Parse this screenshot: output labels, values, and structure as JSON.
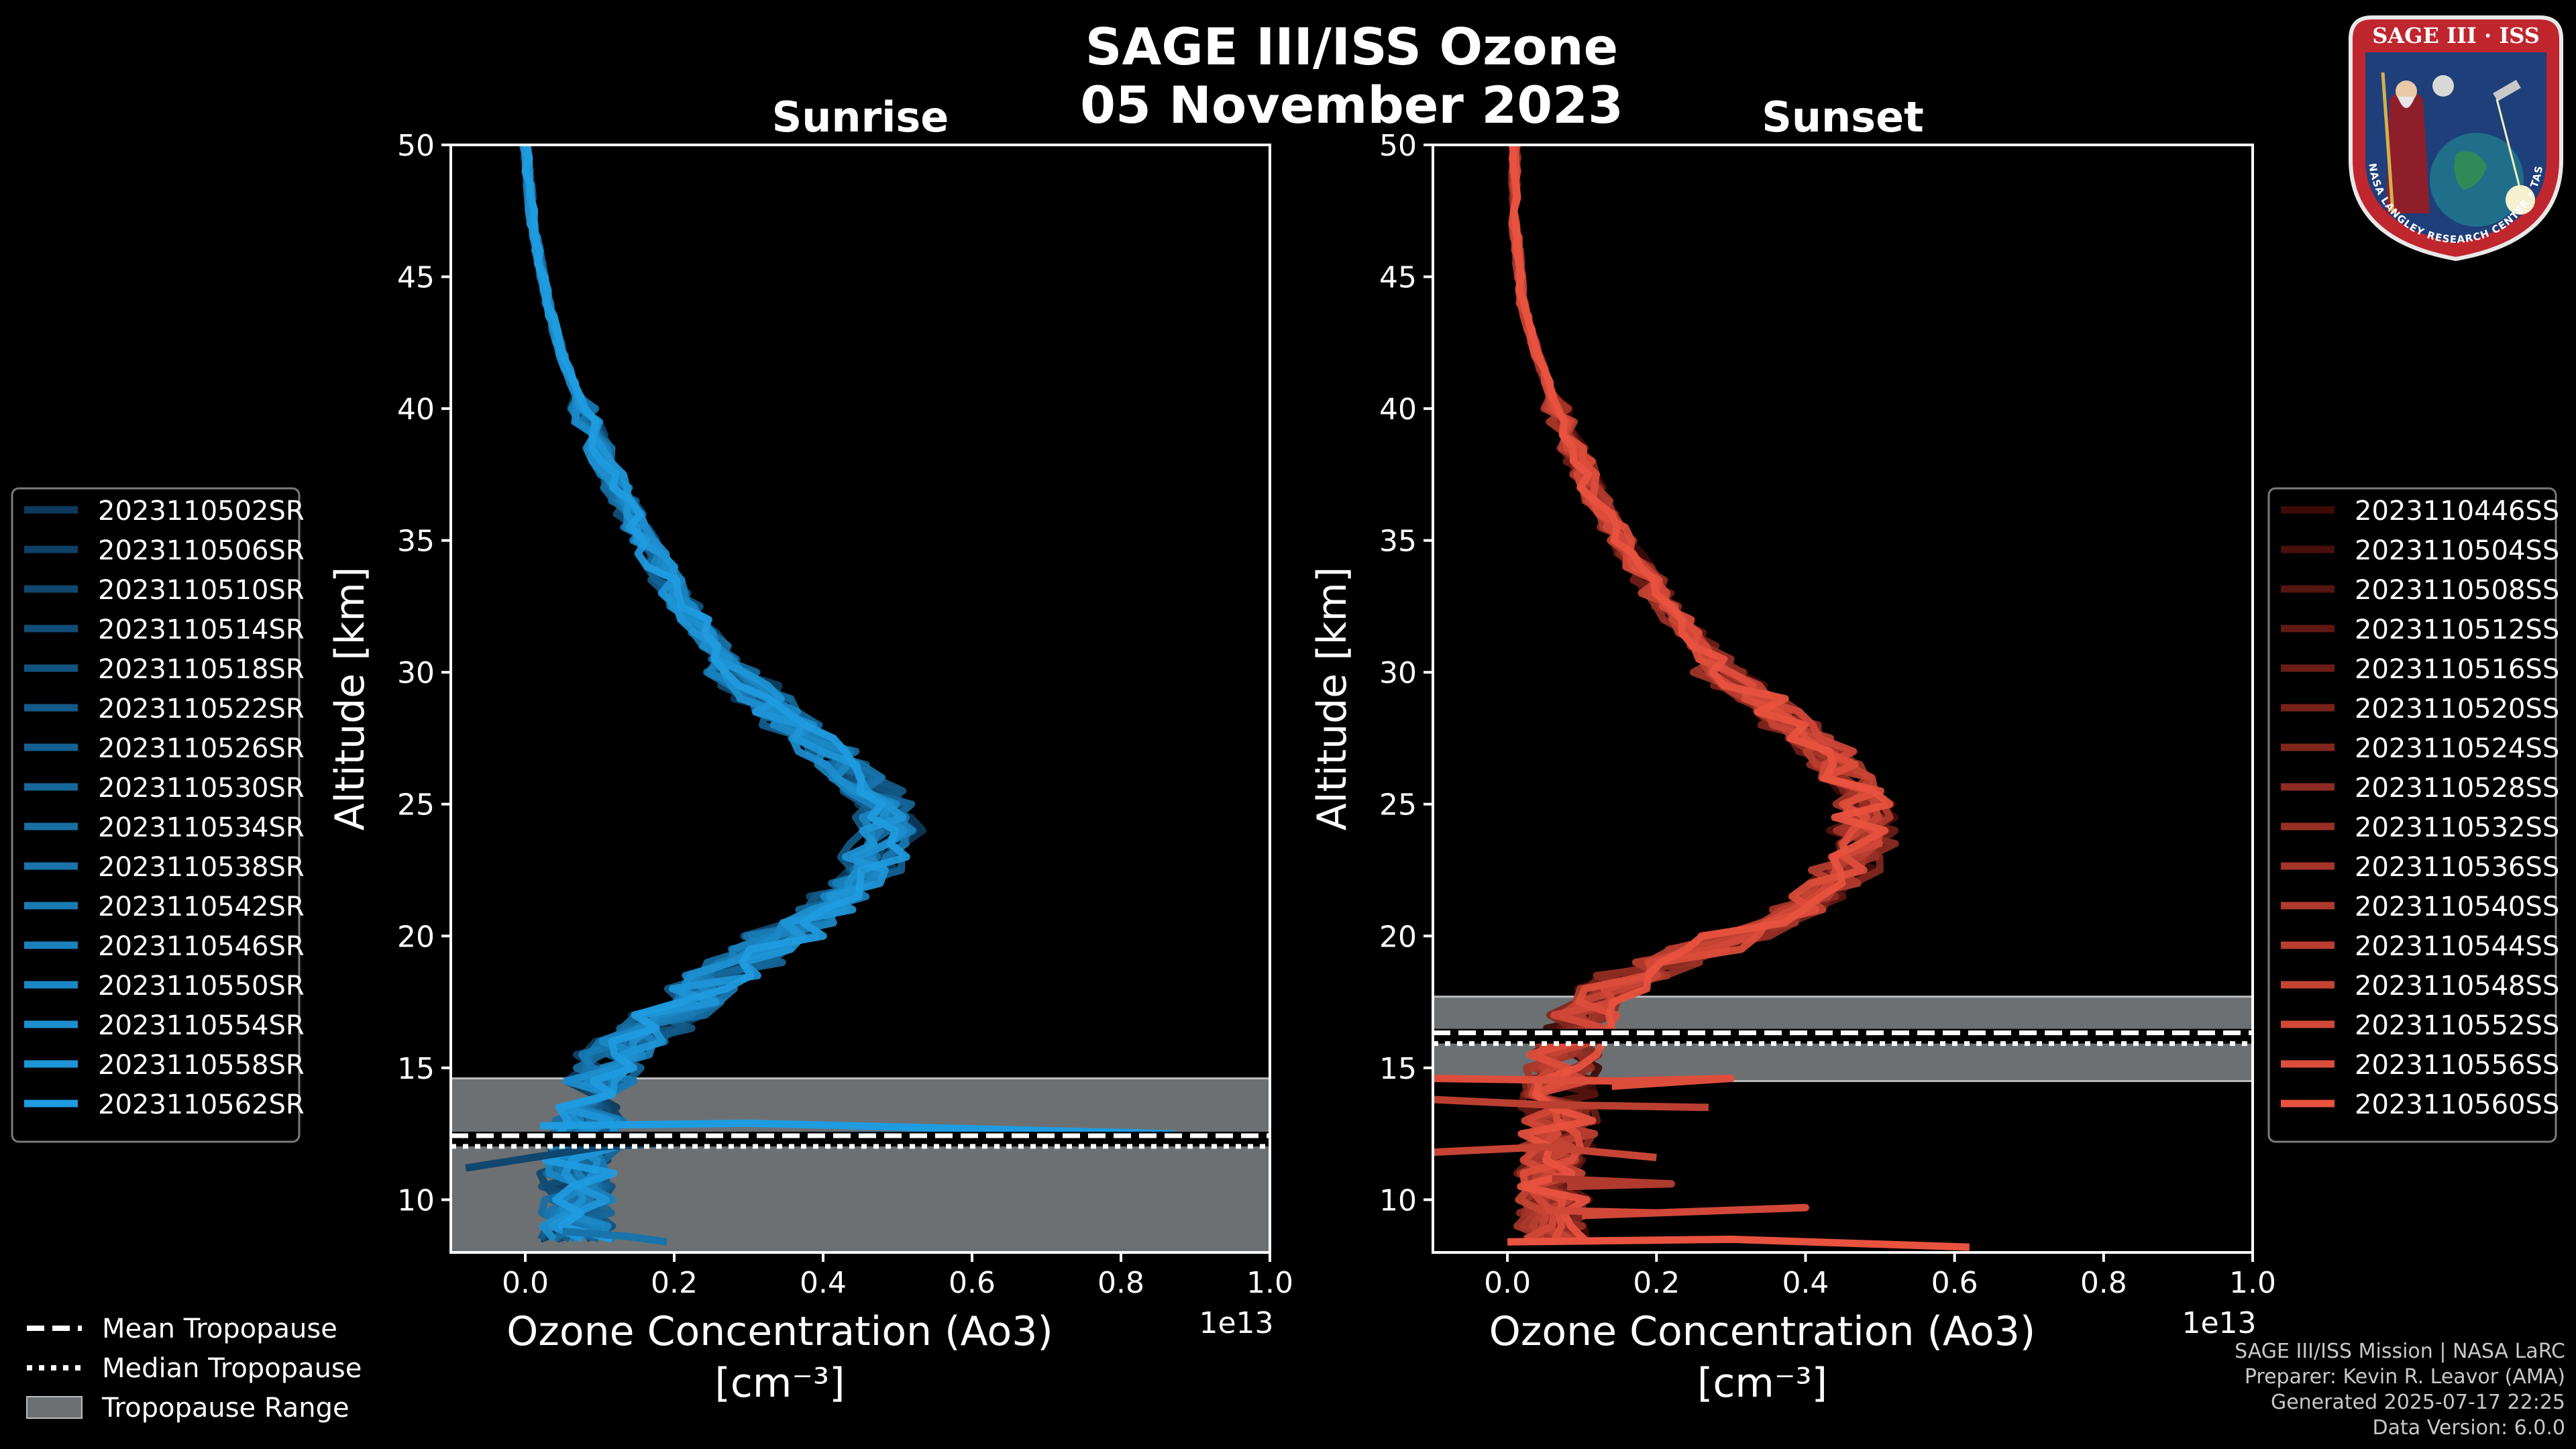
{
  "title": "SAGE III/ISS Ozone",
  "subtitle": "05 November 2023",
  "logo": {
    "line1": "SAGE III · ISS",
    "ring_text": "BALL • NASA LANGLEY RESEARCH CENTER • TAS-I • ESA",
    "colors": {
      "ring": "#c0262e",
      "field": "#1e3f7a",
      "gold": "#d7b04a"
    }
  },
  "credits": [
    "SAGE III/ISS Mission | NASA LaRC",
    "Preparer: Kevin R. Leavor (AMA)",
    "Generated 2025-07-17 22:25",
    "Data Version: 6.0.0"
  ],
  "bottom_legend": [
    {
      "label": "Mean Tropopause",
      "style": "dashed"
    },
    {
      "label": "Median Tropopause",
      "style": "dotted"
    },
    {
      "label": "Tropopause Range",
      "style": "patch"
    }
  ],
  "chart_data": [
    {
      "type": "line",
      "title": "Sunrise",
      "xlabel": "Ozone Concentration (Ao3)",
      "xunits": "[cm⁻³]",
      "x_multiplier": "1e13",
      "ylabel": "Altitude [km]",
      "xlim": [
        -0.1,
        1.0
      ],
      "ylim": [
        8,
        50
      ],
      "xticks": [
        "0.0",
        "0.2",
        "0.4",
        "0.6",
        "0.8",
        "1.0"
      ],
      "yticks": [
        "10",
        "15",
        "20",
        "25",
        "30",
        "35",
        "40",
        "45",
        "50"
      ],
      "tropopause": {
        "min": 8.0,
        "max": 14.6,
        "mean": 12.3,
        "median": 12.2
      },
      "color_dark": "#0d3a5c",
      "color_light": "#1f9be0",
      "profile_knots": [
        [
          0.0,
          50
        ],
        [
          0.01,
          47
        ],
        [
          0.03,
          44
        ],
        [
          0.05,
          42
        ],
        [
          0.09,
          39
        ],
        [
          0.14,
          36
        ],
        [
          0.2,
          33
        ],
        [
          0.28,
          30
        ],
        [
          0.36,
          28
        ],
        [
          0.43,
          26.5
        ],
        [
          0.48,
          25
        ],
        [
          0.49,
          24
        ],
        [
          0.46,
          22.5
        ],
        [
          0.4,
          21
        ],
        [
          0.32,
          19.5
        ],
        [
          0.24,
          18
        ],
        [
          0.17,
          16.5
        ],
        [
          0.12,
          15.5
        ],
        [
          0.09,
          14
        ],
        [
          0.08,
          12.5
        ],
        [
          0.07,
          11
        ],
        [
          0.07,
          9.5
        ],
        [
          0.07,
          8.5
        ]
      ],
      "series": [
        {
          "name": "2023110502SR"
        },
        {
          "name": "2023110506SR"
        },
        {
          "name": "2023110510SR"
        },
        {
          "name": "2023110514SR"
        },
        {
          "name": "2023110518SR"
        },
        {
          "name": "2023110522SR"
        },
        {
          "name": "2023110526SR"
        },
        {
          "name": "2023110530SR"
        },
        {
          "name": "2023110534SR"
        },
        {
          "name": "2023110538SR"
        },
        {
          "name": "2023110542SR"
        },
        {
          "name": "2023110546SR"
        },
        {
          "name": "2023110550SR"
        },
        {
          "name": "2023110554SR"
        },
        {
          "name": "2023110558SR"
        },
        {
          "name": "2023110562SR"
        }
      ],
      "spikes": [
        {
          "series": 15,
          "points": [
            [
              0.02,
              12.8
            ],
            [
              0.3,
              12.9
            ],
            [
              0.87,
              12.5
            ],
            [
              0.05,
              12.4
            ]
          ]
        },
        {
          "series": 2,
          "points": [
            [
              -0.08,
              11.2
            ],
            [
              0.1,
              12.0
            ],
            [
              0.28,
              12.3
            ],
            [
              0.06,
              12.1
            ]
          ]
        },
        {
          "series": 9,
          "points": [
            [
              0.05,
              8.8
            ],
            [
              0.14,
              8.6
            ],
            [
              0.19,
              8.4
            ]
          ]
        }
      ]
    },
    {
      "type": "line",
      "title": "Sunset",
      "xlabel": "Ozone Concentration (Ao3)",
      "xunits": "[cm⁻³]",
      "x_multiplier": "1e13",
      "ylabel": "Altitude [km]",
      "xlim": [
        -0.1,
        1.0
      ],
      "ylim": [
        8,
        50
      ],
      "xticks": [
        "0.0",
        "0.2",
        "0.4",
        "0.6",
        "0.8",
        "1.0"
      ],
      "yticks": [
        "10",
        "15",
        "20",
        "25",
        "30",
        "35",
        "40",
        "45",
        "50"
      ],
      "tropopause": {
        "min": 14.5,
        "max": 17.7,
        "mean": 16.2,
        "median": 16.1
      },
      "color_dark": "#3d0a08",
      "color_light": "#e8523f",
      "profile_knots": [
        [
          0.01,
          50
        ],
        [
          0.01,
          47
        ],
        [
          0.02,
          44
        ],
        [
          0.04,
          42
        ],
        [
          0.08,
          39
        ],
        [
          0.13,
          36
        ],
        [
          0.2,
          33
        ],
        [
          0.29,
          30
        ],
        [
          0.38,
          28
        ],
        [
          0.44,
          26.5
        ],
        [
          0.48,
          25
        ],
        [
          0.48,
          23.5
        ],
        [
          0.44,
          22
        ],
        [
          0.36,
          20.5
        ],
        [
          0.26,
          19.5
        ],
        [
          0.17,
          18.5
        ],
        [
          0.11,
          17.5
        ],
        [
          0.08,
          16
        ],
        [
          0.07,
          14.5
        ],
        [
          0.07,
          13
        ],
        [
          0.06,
          11
        ],
        [
          0.06,
          9.5
        ],
        [
          0.06,
          8.5
        ]
      ],
      "series": [
        {
          "name": "2023110446SS"
        },
        {
          "name": "2023110504SS"
        },
        {
          "name": "2023110508SS"
        },
        {
          "name": "2023110512SS"
        },
        {
          "name": "2023110516SS"
        },
        {
          "name": "2023110520SS"
        },
        {
          "name": "2023110524SS"
        },
        {
          "name": "2023110528SS"
        },
        {
          "name": "2023110532SS"
        },
        {
          "name": "2023110536SS"
        },
        {
          "name": "2023110540SS"
        },
        {
          "name": "2023110544SS"
        },
        {
          "name": "2023110548SS"
        },
        {
          "name": "2023110552SS"
        },
        {
          "name": "2023110556SS"
        },
        {
          "name": "2023110560SS"
        }
      ],
      "spikes": [
        {
          "series": 15,
          "points": [
            [
              0.0,
              8.4
            ],
            [
              0.3,
              8.5
            ],
            [
              0.62,
              8.2
            ]
          ]
        },
        {
          "series": 14,
          "points": [
            [
              -0.1,
              14.6
            ],
            [
              0.15,
              14.5
            ],
            [
              0.3,
              14.6
            ],
            [
              0.14,
              14.3
            ]
          ]
        },
        {
          "series": 13,
          "points": [
            [
              0.05,
              9.6
            ],
            [
              0.2,
              9.5
            ],
            [
              0.4,
              9.7
            ],
            [
              0.1,
              9.4
            ]
          ]
        },
        {
          "series": 12,
          "points": [
            [
              -0.1,
              11.8
            ],
            [
              0.05,
              12.0
            ],
            [
              0.2,
              11.6
            ]
          ]
        },
        {
          "series": 11,
          "points": [
            [
              -0.1,
              13.8
            ],
            [
              0.05,
              13.6
            ],
            [
              0.27,
              13.5
            ]
          ]
        },
        {
          "series": 10,
          "points": [
            [
              0.06,
              10.8
            ],
            [
              0.22,
              10.6
            ],
            [
              0.08,
              10.5
            ]
          ]
        }
      ]
    }
  ]
}
